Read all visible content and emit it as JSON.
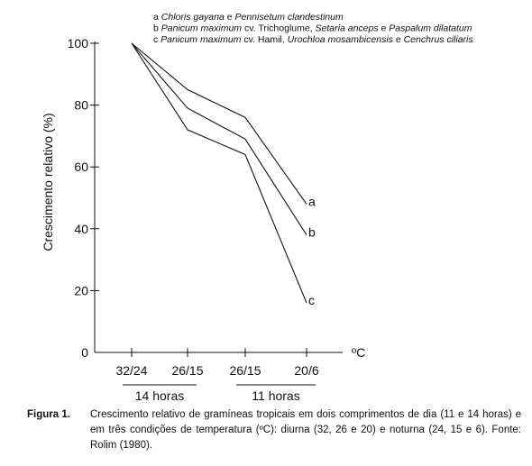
{
  "chart_data": {
    "type": "line",
    "ylabel": "Crescimento relativo (%)",
    "xunit": "ºC",
    "ylim": [
      0,
      100
    ],
    "yticks": [
      0,
      20,
      40,
      60,
      80,
      100
    ],
    "categories": [
      "32/24",
      "26/15",
      "26/15",
      "20/6"
    ],
    "groups": [
      {
        "label": "14 horas",
        "from": 0,
        "to": 1
      },
      {
        "label": "11 horas",
        "from": 2,
        "to": 3
      }
    ],
    "legend": [
      {
        "key": "a",
        "parts": [
          {
            "t": "Chloris gayana",
            "i": true
          },
          {
            "t": " e ",
            "i": false
          },
          {
            "t": "Pennisetum clandestinum",
            "i": true
          }
        ]
      },
      {
        "key": "b",
        "parts": [
          {
            "t": "Panicum maximum",
            "i": true
          },
          {
            "t": " cv. Trichoglume, ",
            "i": false
          },
          {
            "t": "Setaria anceps",
            "i": true
          },
          {
            "t": " e ",
            "i": false
          },
          {
            "t": "Paspalum dilatatum",
            "i": true
          }
        ]
      },
      {
        "key": "c",
        "parts": [
          {
            "t": "Panicum maximum",
            "i": true
          },
          {
            "t": " cv. Hamil, ",
            "i": false
          },
          {
            "t": "Urochloa mosambicensis",
            "i": true
          },
          {
            "t": " e ",
            "i": false
          },
          {
            "t": "Cenchrus ciliaris",
            "i": true
          }
        ]
      }
    ],
    "series": [
      {
        "name": "a",
        "values": [
          100,
          85,
          76,
          48
        ]
      },
      {
        "name": "b",
        "values": [
          100,
          79,
          69,
          38
        ]
      },
      {
        "name": "c",
        "values": [
          100,
          72,
          64,
          16
        ]
      }
    ]
  },
  "caption": {
    "label": "Figura 1.",
    "text": "Crescimento relativo de gramíneas tropicais em dois comprimentos de dia (11 e 14 horas) e em três condições de temperatura (ºC): diurna (32, 26 e 20) e noturna (24, 15 e 6). Fonte: Rolim (1980)."
  }
}
